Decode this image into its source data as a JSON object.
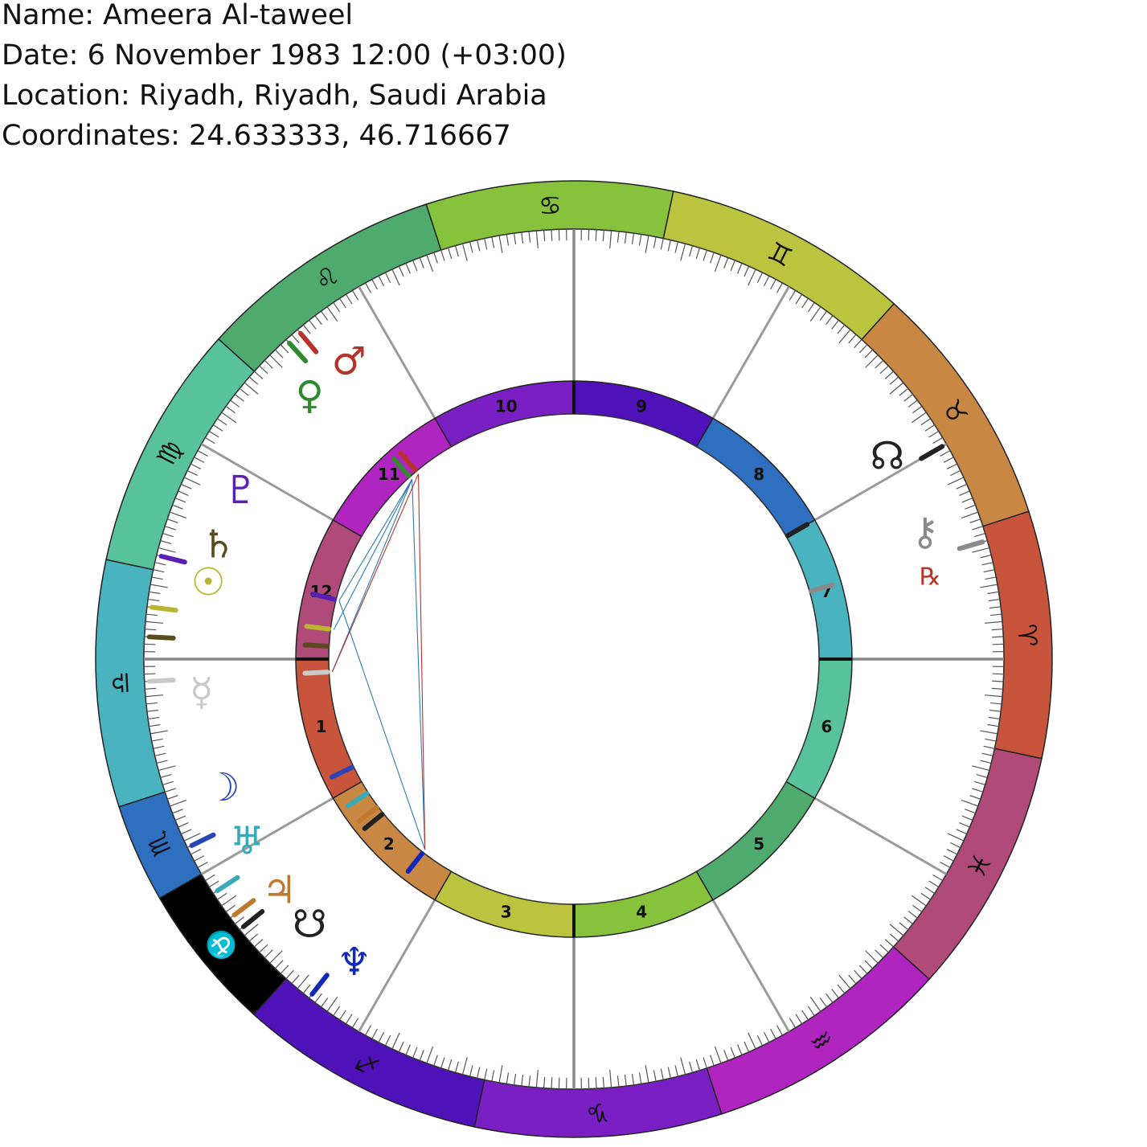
{
  "header": {
    "name": "Name: Ameera Al-taweel",
    "date": "Date: 6 November 1983 12:00 (+03:00)",
    "location": "Location: Riyadh, Riyadh, Saudi Arabia",
    "coordinates": "Coordinates: 24.633333, 46.716667"
  },
  "zodiac": [
    {
      "name": "aries-sign",
      "glyph": "♈",
      "color": "#c8553b",
      "start": -12,
      "end": 18
    },
    {
      "name": "taurus-sign",
      "glyph": "♉",
      "color": "#c88843",
      "start": 18,
      "end": 48
    },
    {
      "name": "gemini-sign",
      "glyph": "♊",
      "color": "#bac43e",
      "start": 48,
      "end": 78
    },
    {
      "name": "cancer-sign",
      "glyph": "♋",
      "color": "#86c23c",
      "start": 78,
      "end": 108
    },
    {
      "name": "leo-sign",
      "glyph": "♌",
      "color": "#4fab6d",
      "start": 108,
      "end": 138
    },
    {
      "name": "virgo-sign",
      "glyph": "♍",
      "color": "#58c39b",
      "start": 138,
      "end": 168
    },
    {
      "name": "libra-sign",
      "glyph": "♎",
      "color": "#4ab3c0",
      "start": 168,
      "end": 198
    },
    {
      "name": "scorpio-sign",
      "glyph": "♏",
      "color": "#2f6fbf",
      "start": 198,
      "end": 210
    },
    {
      "name": "ophiuchus-sign",
      "glyph": "⛎",
      "color": "#000000",
      "start": 210,
      "end": 228
    },
    {
      "name": "sagittarius-sign",
      "glyph": "♐",
      "color": "#4f12b8",
      "start": 228,
      "end": 258
    },
    {
      "name": "capricorn-sign",
      "glyph": "♑",
      "color": "#7a1fc4",
      "start": 258,
      "end": 288
    },
    {
      "name": "aquarius-sign",
      "glyph": "♒",
      "color": "#b024c0",
      "start": 288,
      "end": 318
    },
    {
      "name": "pisces-sign",
      "glyph": "♓",
      "color": "#b04a78",
      "start": 318,
      "end": 348
    }
  ],
  "houses": [
    {
      "label": "1",
      "color": "#c8553b",
      "start": 180,
      "end": 210
    },
    {
      "label": "2",
      "color": "#c88843",
      "start": 210,
      "end": 240
    },
    {
      "label": "3",
      "color": "#bac43e",
      "start": 240,
      "end": 270
    },
    {
      "label": "4",
      "color": "#86c23c",
      "start": 270,
      "end": 300
    },
    {
      "label": "5",
      "color": "#4fab6d",
      "start": 300,
      "end": 330
    },
    {
      "label": "6",
      "color": "#58c39b",
      "start": 330,
      "end": 360
    },
    {
      "label": "7",
      "color": "#4ab3c0",
      "start": 0,
      "end": 30
    },
    {
      "label": "8",
      "color": "#2f6fbf",
      "start": 30,
      "end": 60
    },
    {
      "label": "9",
      "color": "#4f12b8",
      "start": 60,
      "end": 90
    },
    {
      "label": "10",
      "color": "#7a1fc4",
      "start": 90,
      "end": 120
    },
    {
      "label": "11",
      "color": "#b024c0",
      "start": 120,
      "end": 150
    },
    {
      "label": "12",
      "color": "#b04a78",
      "start": 150,
      "end": 180
    }
  ],
  "planets": [
    {
      "name": "sun-glyph",
      "glyph": "☉",
      "color": "#b9b530",
      "mark": 173,
      "glyph_at": 168
    },
    {
      "name": "moon-glyph",
      "glyph": "☽",
      "color": "#2a45b5",
      "mark": 206,
      "glyph_at": 200
    },
    {
      "name": "mercury-glyph",
      "glyph": "☿",
      "color": "#c9c9c9",
      "mark": 183,
      "glyph_at": 185
    },
    {
      "name": "venus-glyph",
      "glyph": "♀",
      "color": "#2f8a2f",
      "mark": 132,
      "glyph_at": 135
    },
    {
      "name": "mars-glyph",
      "glyph": "♂",
      "color": "#b5332a",
      "mark": 130,
      "glyph_at": 127
    },
    {
      "name": "jupiter-glyph",
      "glyph": "♃",
      "color": "#c07a30",
      "mark": 217,
      "glyph_at": 218
    },
    {
      "name": "saturn-glyph",
      "glyph": "♄",
      "color": "#5a4a1e",
      "mark": 177,
      "glyph_at": 162
    },
    {
      "name": "uranus-glyph",
      "glyph": "♅",
      "color": "#3aa9b8",
      "mark": 213,
      "glyph_at": 209
    },
    {
      "name": "neptune-glyph",
      "glyph": "♆",
      "color": "#1029b8",
      "mark": 232,
      "glyph_at": 234
    },
    {
      "name": "pluto-glyph",
      "glyph": "♇",
      "color": "#5a1fb5",
      "mark": 166,
      "glyph_at": 153
    },
    {
      "name": "north-node-glyph",
      "glyph": "☊",
      "color": "#222222",
      "mark": 30,
      "glyph_at": 33
    },
    {
      "name": "south-node-glyph",
      "glyph": "☋",
      "color": "#222222",
      "mark": 219,
      "glyph_at": 225
    },
    {
      "name": "chiron-glyph",
      "glyph": "⚷",
      "color": "#8a8a8a",
      "mark": 16,
      "glyph_at": 20
    }
  ],
  "retrograde": {
    "glyph": "℞",
    "color": "#b5332a",
    "planet": "chiron-glyph"
  },
  "aspects": [
    {
      "from": "venus-glyph",
      "to": "pluto-glyph",
      "color": "#2f7ab8"
    },
    {
      "from": "venus-glyph",
      "to": "sun-glyph",
      "color": "#2f7ab8"
    },
    {
      "from": "venus-glyph",
      "to": "mercury-glyph",
      "color": "#2f7ab8"
    },
    {
      "from": "venus-glyph",
      "to": "neptune-glyph",
      "color": "#2f7ab8"
    },
    {
      "from": "mars-glyph",
      "to": "neptune-glyph",
      "color": "#b5332a"
    },
    {
      "from": "mars-glyph",
      "to": "mercury-glyph",
      "color": "#b5332a"
    },
    {
      "from": "pluto-glyph",
      "to": "neptune-glyph",
      "color": "#2f7ab8"
    }
  ]
}
